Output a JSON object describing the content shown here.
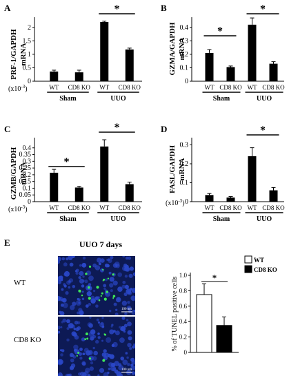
{
  "panels": [
    {
      "letter": "A",
      "ylabel": "PRF-1/GAPDH",
      "ylabel2": "mRNA",
      "multiplier": "(x10",
      "exp": "-3",
      "close": ")",
      "chart_data": {
        "type": "bar",
        "categories": [
          "WT",
          "CD8 KO",
          "WT",
          "CD8 KO"
        ],
        "groups": [
          "Sham",
          "UUO"
        ],
        "values": [
          0.36,
          0.33,
          2.2,
          1.18
        ],
        "errors": [
          0.05,
          0.08,
          0.03,
          0.05
        ],
        "ylim": [
          0,
          2.25
        ],
        "yticks": [
          "0",
          "0.5",
          "1",
          "1.5",
          "2"
        ],
        "significance": [
          "*"
        ]
      }
    },
    {
      "letter": "B",
      "ylabel": "GZMA/GAPDH",
      "ylabel2": "mRNA",
      "multiplier": "",
      "exp": "",
      "close": "",
      "chart_data": {
        "type": "bar",
        "categories": [
          "WT",
          "CD8 KO",
          "WT",
          "CD8 KO"
        ],
        "groups": [
          "Sham",
          "UUO"
        ],
        "values": [
          0.21,
          0.105,
          0.42,
          0.13
        ],
        "errors": [
          0.025,
          0.008,
          0.05,
          0.015
        ],
        "ylim": [
          0,
          0.45
        ],
        "yticks": [
          "0",
          "0.1",
          "0.2",
          "0.3",
          "0.4"
        ],
        "significance": [
          "*",
          "*"
        ]
      }
    },
    {
      "letter": "C",
      "ylabel": "GZMB/GAPDH",
      "ylabel2": "mRNA",
      "multiplier": "(x10",
      "exp": "-3",
      "close": ")",
      "chart_data": {
        "type": "bar",
        "categories": [
          "WT",
          "CD8 KO",
          "WT",
          "CD8 KO"
        ],
        "groups": [
          "Sham",
          "UUO"
        ],
        "values": [
          0.215,
          0.105,
          0.41,
          0.13
        ],
        "errors": [
          0.025,
          0.01,
          0.05,
          0.015
        ],
        "ylim": [
          0,
          0.45
        ],
        "yticks": [
          "0",
          "0.05",
          "0.1",
          "0.15",
          "0.2",
          "0.25",
          "0.3",
          "0.35",
          "0.4"
        ],
        "significance": [
          "*",
          "*"
        ]
      }
    },
    {
      "letter": "D",
      "ylabel": "FASL/GAPDH",
      "ylabel2": "mRNA",
      "multiplier": "(x10",
      "exp": "-3",
      "close": ")",
      "chart_data": {
        "type": "bar",
        "categories": [
          "WT",
          "CD8 KO",
          "WT",
          "CD8 KO"
        ],
        "groups": [
          "Sham",
          "UUO"
        ],
        "values": [
          0.035,
          0.022,
          0.24,
          0.06
        ],
        "errors": [
          0.008,
          0.005,
          0.045,
          0.015
        ],
        "ylim": [
          0,
          0.32
        ],
        "yticks": [
          "0",
          "0.1",
          "0.2",
          "0.3"
        ],
        "significance": [
          "*"
        ]
      }
    }
  ],
  "panelE": {
    "letter": "E",
    "title": "UUO 7 days",
    "row_labels": [
      "WT",
      "CD8 KO"
    ],
    "scale_label": "100 nm",
    "colors": {
      "background": "#0d1a55",
      "nuclei": "#2a47c8",
      "tunel": "#3ee65a"
    },
    "chart_data": {
      "type": "bar",
      "categories": [
        "WT",
        "CD8 KO"
      ],
      "values": [
        0.75,
        0.35
      ],
      "errors": [
        0.14,
        0.11
      ],
      "ylabel": "% of TUNEL positive cells",
      "ylim": [
        0,
        1.0
      ],
      "yticks": [
        "0",
        "0.2",
        "0.4",
        "0.6",
        "0.8",
        "1.0"
      ],
      "legend": [
        {
          "label": "WT",
          "fill": "#ffffff"
        },
        {
          "label": "CD8 KO",
          "fill": "#000000"
        }
      ],
      "significance": [
        "*"
      ]
    }
  }
}
